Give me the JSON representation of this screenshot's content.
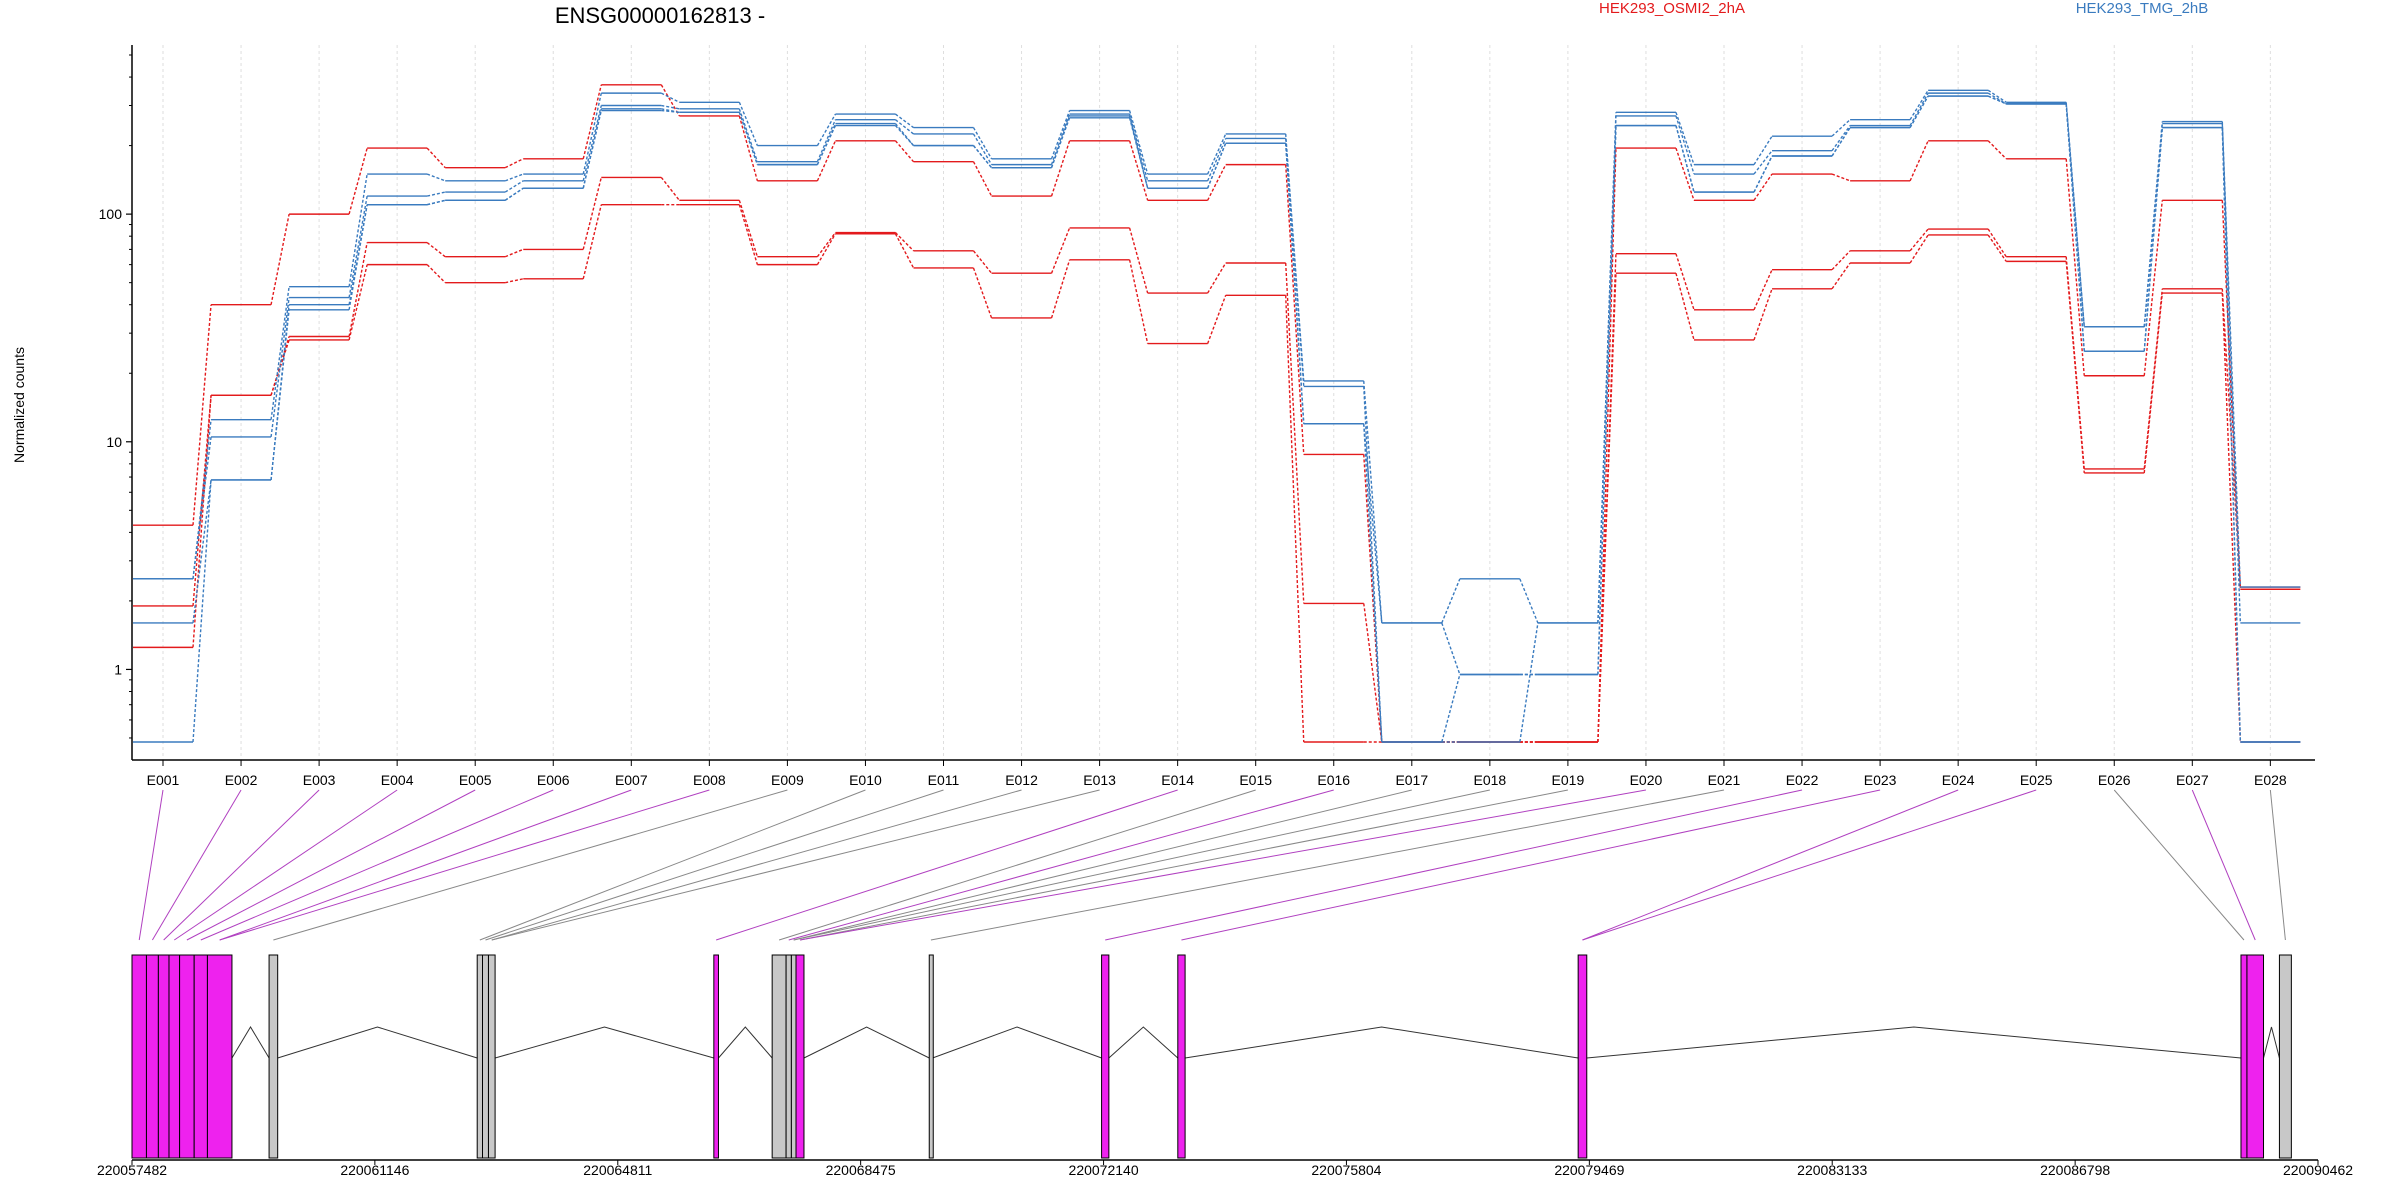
{
  "chart_data": {
    "type": "line",
    "title": "ENSG00000162813 -",
    "ylabel": "Normalized counts",
    "xlabel": "",
    "yscale": "log",
    "ylim": [
      0.48,
      500
    ],
    "yticks": [
      1,
      10,
      100
    ],
    "yticklabels": [
      "1",
      "10",
      "100"
    ],
    "grid": "vertical",
    "legend_position": "top",
    "categories": [
      "E001",
      "E002",
      "E003",
      "E004",
      "E005",
      "E006",
      "E007",
      "E008",
      "E009",
      "E010",
      "E011",
      "E012",
      "E013",
      "E014",
      "E015",
      "E016",
      "E017",
      "E018",
      "E019",
      "E020",
      "E021",
      "E022",
      "E023",
      "E024",
      "E025",
      "E026",
      "E027",
      "E028"
    ],
    "groups": [
      {
        "label": "HEK293_OSMI2_2hA",
        "color": "#e31a1c"
      },
      {
        "label": "HEK293_TMG_2hB",
        "color": "#3a7bbf"
      }
    ],
    "series": [
      {
        "group": 0,
        "values": [
          4.3,
          40,
          100,
          195,
          160,
          175,
          370,
          270,
          140,
          210,
          170,
          120,
          210,
          115,
          165,
          8.8,
          0.48,
          0.48,
          0.48,
          195,
          115,
          150,
          140,
          210,
          175,
          19.5,
          115,
          2.25
        ]
      },
      {
        "group": 0,
        "values": [
          1.25,
          16,
          29,
          75,
          65,
          70,
          145,
          115,
          65,
          83,
          69,
          55,
          87,
          45,
          61,
          1.95,
          0.48,
          0.48,
          0.48,
          67,
          38,
          57,
          69,
          86,
          65,
          7.6,
          47,
          2.3
        ]
      },
      {
        "group": 0,
        "values": [
          1.9,
          16,
          28,
          60,
          50,
          52,
          110,
          110,
          60,
          82,
          58,
          35,
          63,
          27,
          44,
          0.48,
          0.48,
          0.48,
          0.48,
          55,
          28,
          47,
          61,
          81,
          62,
          7.3,
          45,
          0.48
        ]
      },
      {
        "group": 1,
        "values": [
          2.5,
          12.5,
          48,
          150,
          140,
          150,
          340,
          310,
          200,
          275,
          240,
          175,
          285,
          150,
          225,
          18.5,
          1.6,
          2.5,
          1.6,
          280,
          165,
          220,
          260,
          350,
          310,
          32,
          255,
          2.3
        ]
      },
      {
        "group": 1,
        "values": [
          2.5,
          10.5,
          43,
          120,
          125,
          140,
          300,
          290,
          170,
          260,
          225,
          165,
          275,
          140,
          215,
          17.5,
          0.48,
          0.48,
          1.6,
          270,
          150,
          190,
          245,
          340,
          305,
          32,
          250,
          1.6
        ]
      },
      {
        "group": 1,
        "values": [
          1.6,
          6.8,
          40,
          110,
          115,
          130,
          290,
          280,
          165,
          250,
          200,
          160,
          270,
          130,
          205,
          12,
          0.48,
          0.95,
          0.95,
          245,
          125,
          180,
          240,
          330,
          305,
          25,
          240,
          0.48
        ]
      },
      {
        "group": 1,
        "values": [
          0.48,
          6.8,
          38,
          110,
          115,
          130,
          285,
          280,
          165,
          245,
          200,
          160,
          265,
          130,
          205,
          12,
          1.6,
          0.95,
          0.95,
          245,
          125,
          180,
          240,
          330,
          305,
          25,
          240,
          0.48
        ]
      }
    ],
    "gene_model": {
      "xticks": [
        220057482,
        220061146,
        220064811,
        220068475,
        220072140,
        220075804,
        220079469,
        220083133,
        220086798,
        220090462
      ],
      "xticklabels": [
        "220057482",
        "220061146",
        "220064811",
        "220068475",
        "220072140",
        "220075804",
        "220079469",
        "220083133",
        "220086798",
        "220090462"
      ],
      "range": [
        220057482,
        220090462
      ],
      "exon_colors": {
        "highlighted": "#ee22ee",
        "normal": "#c8c8c8"
      },
      "exons": [
        {
          "id": "E001",
          "start": 220057482,
          "end": 220057700,
          "highlighted": true
        },
        {
          "id": "E002",
          "start": 220057700,
          "end": 220057880,
          "highlighted": true
        },
        {
          "id": "E003",
          "start": 220057880,
          "end": 220058040,
          "highlighted": true
        },
        {
          "id": "E004",
          "start": 220058040,
          "end": 220058200,
          "highlighted": true
        },
        {
          "id": "E005",
          "start": 220058200,
          "end": 220058420,
          "highlighted": true
        },
        {
          "id": "E006",
          "start": 220058420,
          "end": 220058620,
          "highlighted": true
        },
        {
          "id": "E007",
          "start": 220058620,
          "end": 220058990,
          "highlighted": true
        },
        {
          "id": "E008",
          "start": 220059550,
          "end": 220059680,
          "highlighted": false
        },
        {
          "id": "E009",
          "start": 220062690,
          "end": 220062770,
          "highlighted": false
        },
        {
          "id": "E010",
          "start": 220062770,
          "end": 220062860,
          "highlighted": false
        },
        {
          "id": "E011",
          "start": 220062860,
          "end": 220062960,
          "highlighted": false
        },
        {
          "id": "E012",
          "start": 220066260,
          "end": 220066330,
          "highlighted": true
        },
        {
          "id": "E013",
          "start": 220067140,
          "end": 220067350,
          "highlighted": false
        },
        {
          "id": "E014",
          "start": 220067350,
          "end": 220067430,
          "highlighted": false
        },
        {
          "id": "E015",
          "start": 220067430,
          "end": 220067500,
          "highlighted": false
        },
        {
          "id": "E016",
          "start": 220067500,
          "end": 220067620,
          "highlighted": true
        },
        {
          "id": "E017",
          "start": 220069510,
          "end": 220069560,
          "highlighted": false
        },
        {
          "id": "E018",
          "start": 220072110,
          "end": 220072220,
          "highlighted": true
        },
        {
          "id": "E019",
          "start": 220073260,
          "end": 220073370,
          "highlighted": true
        },
        {
          "id": "E020",
          "start": 220079300,
          "end": 220079430,
          "highlighted": true
        },
        {
          "id": "E021",
          "start": 220089300,
          "end": 220089390,
          "highlighted": true
        },
        {
          "id": "E022",
          "start": 220089390,
          "end": 220089640,
          "highlighted": true
        },
        {
          "id": "E023",
          "start": 220089880,
          "end": 220090060,
          "highlighted": false
        }
      ],
      "connectors": [
        {
          "label_index": 0,
          "exon_index": 0,
          "highlighted": true
        },
        {
          "label_index": 1,
          "exon_index": 1,
          "highlighted": true
        },
        {
          "label_index": 2,
          "exon_index": 2,
          "highlighted": true
        },
        {
          "label_index": 3,
          "exon_index": 3,
          "highlighted": true
        },
        {
          "label_index": 4,
          "exon_index": 4,
          "highlighted": true
        },
        {
          "label_index": 5,
          "exon_index": 5,
          "highlighted": true
        },
        {
          "label_index": 6,
          "exon_index": 6,
          "highlighted": true
        },
        {
          "label_index": 7,
          "exon_index": 6,
          "highlighted": true
        },
        {
          "label_index": 8,
          "exon_index": 7,
          "highlighted": false
        },
        {
          "label_index": 9,
          "exon_index": 8,
          "highlighted": false
        },
        {
          "label_index": 10,
          "exon_index": 9,
          "highlighted": false
        },
        {
          "label_index": 11,
          "exon_index": 10,
          "highlighted": false
        },
        {
          "label_index": 12,
          "exon_index": 10,
          "highlighted": false
        },
        {
          "label_index": 13,
          "exon_index": 11,
          "highlighted": true
        },
        {
          "label_index": 14,
          "exon_index": 12,
          "highlighted": false
        },
        {
          "label_index": 15,
          "exon_index": 13,
          "highlighted": true
        },
        {
          "label_index": 16,
          "exon_index": 14,
          "highlighted": false
        },
        {
          "label_index": 17,
          "exon_index": 14,
          "highlighted": false
        },
        {
          "label_index": 18,
          "exon_index": 15,
          "highlighted": false
        },
        {
          "label_index": 19,
          "exon_index": 15,
          "highlighted": true
        },
        {
          "label_index": 20,
          "exon_index": 16,
          "highlighted": false
        },
        {
          "label_index": 21,
          "exon_index": 17,
          "highlighted": true
        },
        {
          "label_index": 22,
          "exon_index": 18,
          "highlighted": true
        },
        {
          "label_index": 23,
          "exon_index": 19,
          "highlighted": true
        },
        {
          "label_index": 24,
          "exon_index": 19,
          "highlighted": true
        },
        {
          "label_index": 25,
          "exon_index": 20,
          "highlighted": false
        },
        {
          "label_index": 26,
          "exon_index": 21,
          "highlighted": true
        },
        {
          "label_index": 27,
          "exon_index": 22,
          "highlighted": false
        }
      ]
    }
  }
}
